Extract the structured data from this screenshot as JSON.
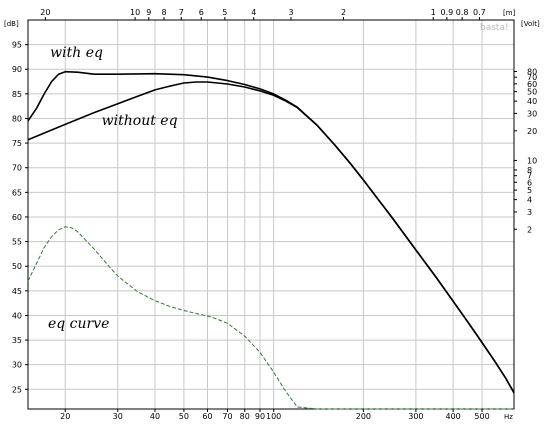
{
  "chart_data": {
    "type": "line",
    "title": "",
    "xlabel": "",
    "ylabel": "",
    "x_scale": "log",
    "xlim": [
      15,
      640
    ],
    "ylim": [
      21,
      100
    ],
    "grid": true,
    "watermark": "basta!",
    "axis_units": {
      "x_bottom": "Hz",
      "x_top": "[m]",
      "y_left": "[dB]",
      "y_right": "[Volt]"
    },
    "x_ticks": [
      {
        "value": 20,
        "label": "20"
      },
      {
        "value": 30,
        "label": "30"
      },
      {
        "value": 40,
        "label": "40"
      },
      {
        "value": 50,
        "label": "50"
      },
      {
        "value": 60,
        "label": "60"
      },
      {
        "value": 70,
        "label": "70"
      },
      {
        "value": 80,
        "label": "80"
      },
      {
        "value": 90,
        "label": "90"
      },
      {
        "value": 100,
        "label": "100"
      },
      {
        "value": 200,
        "label": "200"
      },
      {
        "value": 300,
        "label": "300"
      },
      {
        "value": 400,
        "label": "400"
      },
      {
        "value": 500,
        "label": "500"
      }
    ],
    "top_ticks": [
      {
        "value": 20,
        "label": "20"
      },
      {
        "value": 10,
        "label": "10"
      },
      {
        "value": 9,
        "label": "9"
      },
      {
        "value": 8,
        "label": "8"
      },
      {
        "value": 7,
        "label": "7"
      },
      {
        "value": 6,
        "label": "6"
      },
      {
        "value": 5,
        "label": "5"
      },
      {
        "value": 4,
        "label": "4"
      },
      {
        "value": 3,
        "label": "3"
      },
      {
        "value": 2,
        "label": "2"
      },
      {
        "value": 1,
        "label": "1"
      },
      {
        "value": 0.9,
        "label": "0.9"
      },
      {
        "value": 0.8,
        "label": "0.8"
      },
      {
        "value": 0.7,
        "label": "0.7"
      }
    ],
    "y_ticks": [
      25,
      30,
      35,
      40,
      45,
      50,
      55,
      60,
      65,
      70,
      75,
      80,
      85,
      90,
      95
    ],
    "right_ticks": [
      {
        "value": 80,
        "label": "80"
      },
      {
        "value": 70,
        "label": "70"
      },
      {
        "value": 60,
        "label": "60"
      },
      {
        "value": 50,
        "label": "50"
      },
      {
        "value": 40,
        "label": "40"
      },
      {
        "value": 30,
        "label": "30"
      },
      {
        "value": 20,
        "label": "20"
      },
      {
        "value": 10,
        "label": "10"
      },
      {
        "value": 8,
        "label": "8"
      },
      {
        "value": 7,
        "label": "7"
      },
      {
        "value": 6,
        "label": "6"
      },
      {
        "value": 5,
        "label": "5"
      },
      {
        "value": 4,
        "label": "4"
      },
      {
        "value": 3,
        "label": "3"
      },
      {
        "value": 2,
        "label": "2"
      }
    ],
    "series": [
      {
        "name": "with eq",
        "color": "#000000",
        "style": "solid",
        "points": [
          [
            15,
            79.5
          ],
          [
            16,
            82
          ],
          [
            17,
            85
          ],
          [
            18,
            87.5
          ],
          [
            19,
            89
          ],
          [
            20,
            89.5
          ],
          [
            22,
            89.4
          ],
          [
            25,
            89
          ],
          [
            30,
            89
          ],
          [
            40,
            89.1
          ],
          [
            50,
            88.9
          ],
          [
            60,
            88.4
          ],
          [
            70,
            87.7
          ],
          [
            80,
            86.9
          ],
          [
            90,
            86
          ],
          [
            100,
            85
          ],
          [
            110,
            83.7
          ],
          [
            120,
            82.3
          ],
          [
            140,
            78.6
          ],
          [
            160,
            74.7
          ],
          [
            180,
            71
          ],
          [
            200,
            67.5
          ],
          [
            250,
            59.8
          ],
          [
            300,
            53.3
          ],
          [
            350,
            47.8
          ],
          [
            400,
            42.9
          ],
          [
            450,
            38.5
          ],
          [
            500,
            34.5
          ],
          [
            550,
            30.8
          ],
          [
            600,
            27.3
          ],
          [
            640,
            24.3
          ]
        ]
      },
      {
        "name": "without eq",
        "color": "#000000",
        "style": "solid",
        "points": [
          [
            15,
            75.7
          ],
          [
            20,
            78.8
          ],
          [
            25,
            81.2
          ],
          [
            30,
            83
          ],
          [
            35,
            84.5
          ],
          [
            40,
            85.8
          ],
          [
            45,
            86.6
          ],
          [
            50,
            87.2
          ],
          [
            55,
            87.4
          ],
          [
            60,
            87.4
          ],
          [
            70,
            87
          ],
          [
            80,
            86.4
          ],
          [
            90,
            85.6
          ],
          [
            100,
            84.7
          ],
          [
            110,
            83.5
          ],
          [
            120,
            82.2
          ],
          [
            140,
            78.6
          ],
          [
            160,
            74.7
          ],
          [
            180,
            71
          ],
          [
            200,
            67.5
          ],
          [
            250,
            59.8
          ],
          [
            300,
            53.3
          ],
          [
            350,
            47.8
          ],
          [
            400,
            42.9
          ],
          [
            450,
            38.5
          ],
          [
            500,
            34.5
          ],
          [
            550,
            30.8
          ],
          [
            600,
            27.3
          ],
          [
            640,
            24.3
          ]
        ]
      },
      {
        "name": "eq curve",
        "color": "#2e7d32",
        "style": "dashed",
        "points": [
          [
            15,
            47
          ],
          [
            16,
            50.5
          ],
          [
            17,
            53.8
          ],
          [
            18,
            56
          ],
          [
            19,
            57.4
          ],
          [
            20,
            58
          ],
          [
            21,
            57.8
          ],
          [
            22,
            57
          ],
          [
            25,
            53.5
          ],
          [
            28,
            50
          ],
          [
            30,
            48
          ],
          [
            35,
            44.8
          ],
          [
            40,
            43
          ],
          [
            45,
            41.8
          ],
          [
            50,
            41
          ],
          [
            55,
            40.4
          ],
          [
            60,
            39.9
          ],
          [
            65,
            39.2
          ],
          [
            70,
            38.4
          ],
          [
            80,
            35.8
          ],
          [
            90,
            32.5
          ],
          [
            100,
            28.5
          ],
          [
            110,
            24.5
          ],
          [
            120,
            21.4
          ],
          [
            140,
            21
          ],
          [
            200,
            21
          ],
          [
            300,
            21
          ],
          [
            400,
            21
          ],
          [
            500,
            21
          ],
          [
            640,
            21
          ]
        ]
      }
    ],
    "annotations": [
      {
        "text": "with eq",
        "x": 17.8,
        "y": 92.5
      },
      {
        "text": "without eq",
        "x": 26.5,
        "y": 78.7
      },
      {
        "text": "eq curve",
        "x": 17.5,
        "y": 37.5
      }
    ]
  }
}
